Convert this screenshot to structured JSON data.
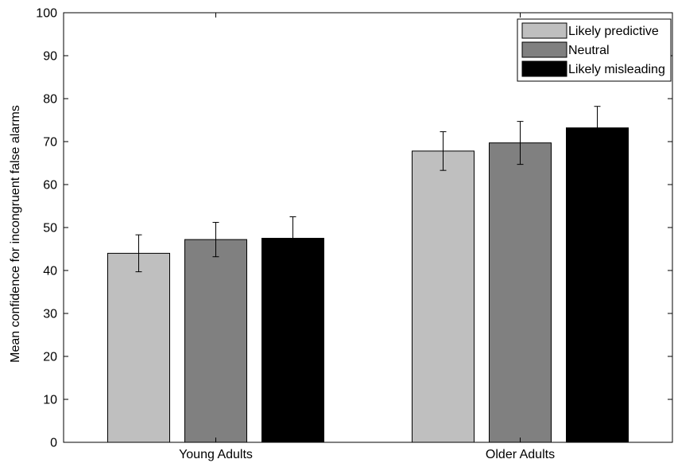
{
  "chart_data": {
    "type": "bar",
    "title": "",
    "xlabel": "",
    "ylabel": "Mean confidence for incongruent false alarms",
    "ylim": [
      0,
      100
    ],
    "yticks": [
      0,
      10,
      20,
      30,
      40,
      50,
      60,
      70,
      80,
      90,
      100
    ],
    "grid": false,
    "legend_position": "top-right",
    "categories": [
      "Young Adults",
      "Older Adults"
    ],
    "series": [
      {
        "name": "Likely predictive",
        "color": "#bfbfbf",
        "values": [
          44,
          67.8
        ],
        "errors": [
          4.3,
          4.5
        ]
      },
      {
        "name": "Neutral",
        "color": "#808080",
        "values": [
          47.2,
          69.7
        ],
        "errors": [
          4.0,
          5.0
        ]
      },
      {
        "name": "Likely misleading",
        "color": "#000000",
        "values": [
          47.5,
          73.2
        ],
        "errors": [
          5.0,
          5.0
        ]
      }
    ]
  }
}
